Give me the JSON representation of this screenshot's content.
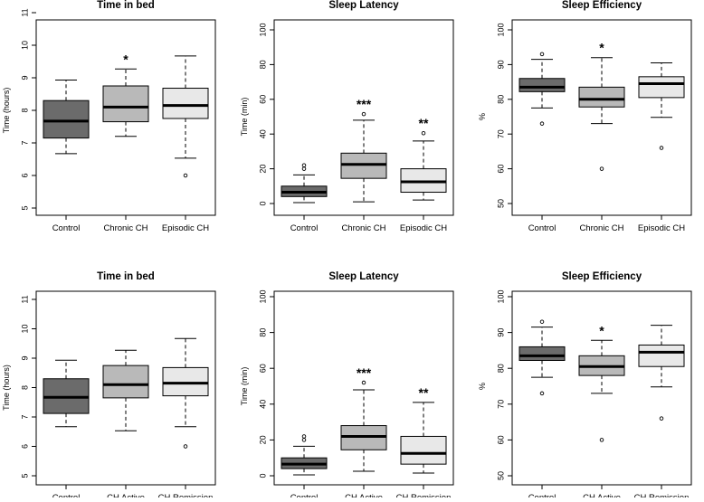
{
  "colors": {
    "control": "#6b6b6b",
    "group2": "#b9b9b9",
    "group3": "#e8e8e8",
    "axis": "#000000"
  },
  "chart_data": [
    {
      "type": "boxplot",
      "title": "Time in bed",
      "ylabel": "Time (hours)",
      "ylim": [
        5,
        11
      ],
      "yticks": [
        5,
        6,
        7,
        8,
        9,
        10,
        11
      ],
      "categories": [
        "Control",
        "Chronic CH",
        "Episodic CH"
      ],
      "boxes": [
        {
          "min": 6.67,
          "q1": 7.15,
          "median": 7.67,
          "q3": 8.3,
          "max": 8.93,
          "outliers": [],
          "sig": ""
        },
        {
          "min": 7.2,
          "q1": 7.65,
          "median": 8.1,
          "q3": 8.75,
          "max": 9.27,
          "outliers": [],
          "sig": "*"
        },
        {
          "min": 6.53,
          "q1": 7.75,
          "median": 8.15,
          "q3": 8.68,
          "max": 9.67,
          "outliers": [
            6.0
          ],
          "sig": ""
        }
      ]
    },
    {
      "type": "boxplot",
      "title": "Sleep Latency",
      "ylabel": "Time (min)",
      "ylim": [
        0,
        100
      ],
      "yticks": [
        0,
        20,
        40,
        60,
        80,
        100
      ],
      "categories": [
        "Control",
        "Chronic CH",
        "Episodic CH"
      ],
      "boxes": [
        {
          "min": 0.5,
          "q1": 4,
          "median": 6.5,
          "q3": 10,
          "max": 16.5,
          "outliers": [
            20,
            22
          ],
          "sig": ""
        },
        {
          "min": 1,
          "q1": 14.5,
          "median": 22.5,
          "q3": 29,
          "max": 48,
          "outliers": [
            51.5
          ],
          "sig": "***"
        },
        {
          "min": 2,
          "q1": 6.5,
          "median": 12.5,
          "q3": 20,
          "max": 36,
          "outliers": [
            40.5
          ],
          "sig": "**"
        }
      ]
    },
    {
      "type": "boxplot",
      "title": "Sleep Efficiency",
      "ylabel": "%",
      "ylim": [
        50,
        100
      ],
      "yticks": [
        50,
        60,
        70,
        80,
        90,
        100
      ],
      "categories": [
        "Control",
        "Chronic CH",
        "Episodic CH"
      ],
      "boxes": [
        {
          "min": 77.5,
          "q1": 82.2,
          "median": 83.5,
          "q3": 86,
          "max": 91.5,
          "outliers": [
            73,
            93
          ],
          "sig": ""
        },
        {
          "min": 73,
          "q1": 77.8,
          "median": 80,
          "q3": 83.5,
          "max": 92,
          "outliers": [
            60
          ],
          "sig": "*"
        },
        {
          "min": 74.8,
          "q1": 80.5,
          "median": 84.5,
          "q3": 86.5,
          "max": 90.5,
          "outliers": [
            66
          ],
          "sig": ""
        }
      ]
    },
    {
      "type": "boxplot",
      "title": "Time in bed",
      "ylabel": "Time (hours)",
      "ylim": [
        5,
        11
      ],
      "yticks": [
        5,
        6,
        7,
        8,
        9,
        10,
        11
      ],
      "categories": [
        "Control",
        "CH Active",
        "CH Remission"
      ],
      "boxes": [
        {
          "min": 6.67,
          "q1": 7.12,
          "median": 7.67,
          "q3": 8.3,
          "max": 8.93,
          "outliers": [],
          "sig": ""
        },
        {
          "min": 6.53,
          "q1": 7.65,
          "median": 8.1,
          "q3": 8.75,
          "max": 9.27,
          "outliers": [],
          "sig": ""
        },
        {
          "min": 6.67,
          "q1": 7.72,
          "median": 8.15,
          "q3": 8.68,
          "max": 9.67,
          "outliers": [
            6.0
          ],
          "sig": ""
        }
      ]
    },
    {
      "type": "boxplot",
      "title": "Sleep Latency",
      "ylabel": "Time (min)",
      "ylim": [
        0,
        100
      ],
      "yticks": [
        0,
        20,
        40,
        60,
        80,
        100
      ],
      "categories": [
        "Control",
        "CH Active",
        "CH Remission"
      ],
      "boxes": [
        {
          "min": 0.5,
          "q1": 4,
          "median": 6.5,
          "q3": 10,
          "max": 16.5,
          "outliers": [
            20,
            22
          ],
          "sig": ""
        },
        {
          "min": 2.5,
          "q1": 14.5,
          "median": 22,
          "q3": 28,
          "max": 48,
          "outliers": [
            52
          ],
          "sig": "***"
        },
        {
          "min": 1.5,
          "q1": 6.5,
          "median": 12.5,
          "q3": 22,
          "max": 41,
          "outliers": [],
          "sig": "**"
        }
      ]
    },
    {
      "type": "boxplot",
      "title": "Sleep Efficiency",
      "ylabel": "%",
      "ylim": [
        50,
        100
      ],
      "yticks": [
        50,
        60,
        70,
        80,
        90,
        100
      ],
      "categories": [
        "Control",
        "CH Active",
        "CH Remission"
      ],
      "boxes": [
        {
          "min": 77.5,
          "q1": 82.2,
          "median": 83.5,
          "q3": 86,
          "max": 91.5,
          "outliers": [
            73,
            93
          ],
          "sig": ""
        },
        {
          "min": 73,
          "q1": 78,
          "median": 80.5,
          "q3": 83.5,
          "max": 87.8,
          "outliers": [
            60
          ],
          "sig": "*"
        },
        {
          "min": 74.8,
          "q1": 80.5,
          "median": 84.5,
          "q3": 86.5,
          "max": 92,
          "outliers": [
            66
          ],
          "sig": ""
        }
      ]
    }
  ]
}
